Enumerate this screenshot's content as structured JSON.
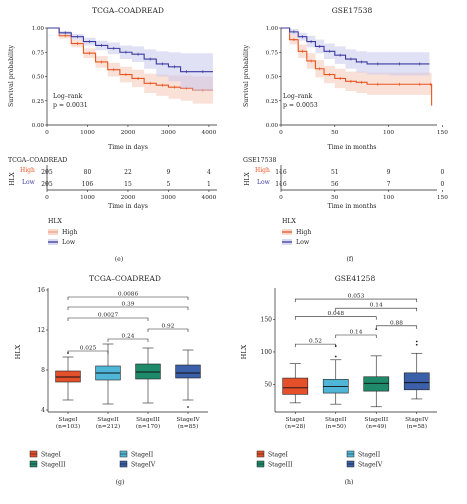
{
  "colors": {
    "high": "#e8551f",
    "low": "#3b3aa0",
    "high_band": "#f6c8b8",
    "low_band": "#c9c9ec",
    "stage1": "#e4502a",
    "stage2": "#4fb6d8",
    "stage3": "#1f8a6a",
    "stage4": "#3b5fa8"
  },
  "panels": {
    "e": {
      "title": "TCGA–COADREAD",
      "caption": "(e)",
      "ylabel": "Survival probability",
      "xlabel": "Time in days",
      "logrank": "Log–rank",
      "pvalue": "p = 0.0031",
      "risk_title": "TCGA–COADREAD",
      "risk_xlabel": "Time in days",
      "strata_title": "HLX",
      "legend_high": "High",
      "legend_low": "Low",
      "risk_axis_label": "HLX"
    },
    "f": {
      "title": "GSE17538",
      "caption": "(f)",
      "ylabel": "Survival probability",
      "xlabel": "Time in months",
      "logrank": "Log–rank",
      "pvalue": "p = 0.0053",
      "risk_title": "GSE17538",
      "risk_xlabel": "Time in months",
      "strata_title": "HLX",
      "legend_high": "High",
      "legend_low": "Low",
      "risk_axis_label": "HLX"
    },
    "g": {
      "title": "TCGA–COADREAD",
      "caption": "(g)",
      "ylabel": "HLX"
    },
    "h": {
      "title": "GSE41258",
      "caption": "(h)",
      "ylabel": "HLX"
    }
  },
  "chart_data": [
    {
      "type": "line",
      "panel": "e",
      "xlim": [
        0,
        4200
      ],
      "ylim": [
        0,
        1
      ],
      "xticks": [
        0,
        1000,
        2000,
        3000,
        4000
      ],
      "yticks": [
        "0.00",
        "0.25",
        "0.50",
        "0.75",
        "1.00"
      ],
      "series": [
        {
          "name": "High",
          "x": [
            0,
            300,
            600,
            900,
            1200,
            1500,
            1800,
            2100,
            2400,
            2700,
            3000,
            3300,
            3600,
            4100
          ],
          "y": [
            1.0,
            0.92,
            0.84,
            0.74,
            0.65,
            0.57,
            0.52,
            0.48,
            0.43,
            0.41,
            0.39,
            0.38,
            0.36,
            0.36
          ],
          "lower": [
            1.0,
            0.89,
            0.8,
            0.69,
            0.59,
            0.5,
            0.44,
            0.39,
            0.33,
            0.3,
            0.27,
            0.25,
            0.22,
            0.22
          ],
          "upper": [
            1.0,
            0.95,
            0.88,
            0.79,
            0.71,
            0.64,
            0.6,
            0.57,
            0.53,
            0.52,
            0.51,
            0.51,
            0.5,
            0.5
          ]
        },
        {
          "name": "Low",
          "x": [
            0,
            300,
            600,
            900,
            1200,
            1500,
            1800,
            2100,
            2400,
            2700,
            3000,
            3300,
            3600,
            4100
          ],
          "y": [
            1.0,
            0.95,
            0.91,
            0.86,
            0.82,
            0.79,
            0.75,
            0.73,
            0.68,
            0.63,
            0.6,
            0.55,
            0.55,
            0.55
          ],
          "lower": [
            1.0,
            0.93,
            0.88,
            0.82,
            0.77,
            0.73,
            0.68,
            0.65,
            0.58,
            0.5,
            0.45,
            0.38,
            0.35,
            0.35
          ],
          "upper": [
            1.0,
            0.97,
            0.94,
            0.9,
            0.87,
            0.85,
            0.82,
            0.81,
            0.78,
            0.76,
            0.75,
            0.74,
            0.74,
            0.74
          ]
        }
      ],
      "risk_table": {
        "times": [
          0,
          1000,
          2000,
          3000,
          4000
        ],
        "High": [
          295,
          80,
          22,
          9,
          4
        ],
        "Low": [
          295,
          106,
          15,
          5,
          1
        ]
      }
    },
    {
      "type": "line",
      "panel": "f",
      "xlim": [
        0,
        145
      ],
      "ylim": [
        0,
        1
      ],
      "xticks": [
        0,
        50,
        100,
        150
      ],
      "yticks": [
        "0.00",
        "0.25",
        "0.50",
        "0.75",
        "1.00"
      ],
      "series": [
        {
          "name": "High",
          "x": [
            0,
            8,
            16,
            24,
            32,
            40,
            50,
            60,
            70,
            80,
            100,
            120,
            138,
            140
          ],
          "y": [
            1.0,
            0.88,
            0.76,
            0.66,
            0.58,
            0.52,
            0.48,
            0.45,
            0.44,
            0.42,
            0.42,
            0.42,
            0.42,
            0.2
          ],
          "lower": [
            1.0,
            0.83,
            0.69,
            0.58,
            0.49,
            0.43,
            0.38,
            0.35,
            0.33,
            0.31,
            0.31,
            0.31,
            0.31,
            0.05
          ],
          "upper": [
            1.0,
            0.93,
            0.83,
            0.74,
            0.67,
            0.61,
            0.58,
            0.55,
            0.55,
            0.54,
            0.54,
            0.54,
            0.54,
            0.82
          ]
        },
        {
          "name": "Low",
          "x": [
            0,
            8,
            16,
            24,
            32,
            40,
            50,
            60,
            70,
            80,
            100,
            120,
            138
          ],
          "y": [
            1.0,
            0.96,
            0.91,
            0.86,
            0.81,
            0.76,
            0.72,
            0.68,
            0.65,
            0.63,
            0.63,
            0.63,
            0.63
          ],
          "lower": [
            1.0,
            0.93,
            0.87,
            0.8,
            0.74,
            0.68,
            0.63,
            0.58,
            0.54,
            0.52,
            0.51,
            0.51,
            0.51
          ],
          "upper": [
            1.0,
            0.99,
            0.95,
            0.92,
            0.88,
            0.84,
            0.81,
            0.78,
            0.76,
            0.75,
            0.75,
            0.75,
            0.75
          ]
        }
      ],
      "risk_table": {
        "times": [
          0,
          50,
          100,
          150
        ],
        "High": [
          116,
          51,
          9,
          0
        ],
        "Low": [
          116,
          56,
          7,
          0
        ]
      }
    },
    {
      "type": "box",
      "panel": "g",
      "ylim": [
        3.8,
        16.2
      ],
      "yticks": [
        4,
        8,
        12,
        16
      ],
      "categories": [
        "StageI",
        "StageII",
        "StageIII",
        "StageIV"
      ],
      "counts": [
        "(n=103)",
        "(n=212)",
        "(n=170)",
        "(n=85)"
      ],
      "boxes": [
        {
          "min": 5.0,
          "q1": 6.8,
          "median": 7.3,
          "q3": 7.9,
          "max": 9.3,
          "outliers": [
            9.7
          ]
        },
        {
          "min": 4.6,
          "q1": 7.0,
          "median": 7.7,
          "q3": 8.4,
          "max": 10.6,
          "outliers": []
        },
        {
          "min": 4.7,
          "q1": 7.1,
          "median": 7.8,
          "q3": 8.6,
          "max": 10.2,
          "outliers": []
        },
        {
          "min": 5.0,
          "q1": 7.2,
          "median": 7.7,
          "q3": 8.5,
          "max": 10.0,
          "outliers": [
            4.3
          ]
        }
      ],
      "comparisons": [
        {
          "from": 0,
          "to": 1,
          "p": "0.025",
          "y": 9.9
        },
        {
          "from": 1,
          "to": 2,
          "p": "0.24",
          "y": 11.1
        },
        {
          "from": 2,
          "to": 3,
          "p": "0.92",
          "y": 12.1
        },
        {
          "from": 0,
          "to": 2,
          "p": "0.0027",
          "y": 13.2
        },
        {
          "from": 0,
          "to": 3,
          "p": "0.39",
          "y": 14.3
        },
        {
          "from": 0,
          "to": 3,
          "p": "0.0086",
          "y": 15.3
        }
      ],
      "legend": [
        "StageI",
        "StageII",
        "StageIII",
        "StageIV"
      ]
    },
    {
      "type": "box",
      "panel": "h",
      "ylim": [
        8,
        198
      ],
      "yticks": [
        50,
        100,
        150
      ],
      "categories": [
        "StageI",
        "StageII",
        "StageIII",
        "StageIV"
      ],
      "counts": [
        "(n=28)",
        "(n=50)",
        "(n=49)",
        "(n=58)"
      ],
      "boxes": [
        {
          "min": 22,
          "q1": 35,
          "median": 45,
          "q3": 60,
          "max": 82,
          "outliers": []
        },
        {
          "min": 20,
          "q1": 37,
          "median": 47,
          "q3": 58,
          "max": 88,
          "outliers": [
            93,
            109
          ]
        },
        {
          "min": 16,
          "q1": 40,
          "median": 52,
          "q3": 62,
          "max": 94,
          "outliers": [
            135
          ]
        },
        {
          "min": 28,
          "q1": 42,
          "median": 53,
          "q3": 68,
          "max": 98,
          "outliers": [
            111,
            116
          ]
        }
      ],
      "comparisons": [
        {
          "from": 0,
          "to": 1,
          "p": "0.52",
          "y": 112
        },
        {
          "from": 1,
          "to": 2,
          "p": "0.14",
          "y": 126
        },
        {
          "from": 2,
          "to": 3,
          "p": "0.88",
          "y": 140
        },
        {
          "from": 0,
          "to": 2,
          "p": "0.048",
          "y": 154
        },
        {
          "from": 1,
          "to": 3,
          "p": "0.14",
          "y": 167
        },
        {
          "from": 0,
          "to": 3,
          "p": "0.053",
          "y": 181
        }
      ],
      "legend": [
        "StageI",
        "StageII",
        "StageIII",
        "StageIV"
      ]
    }
  ]
}
